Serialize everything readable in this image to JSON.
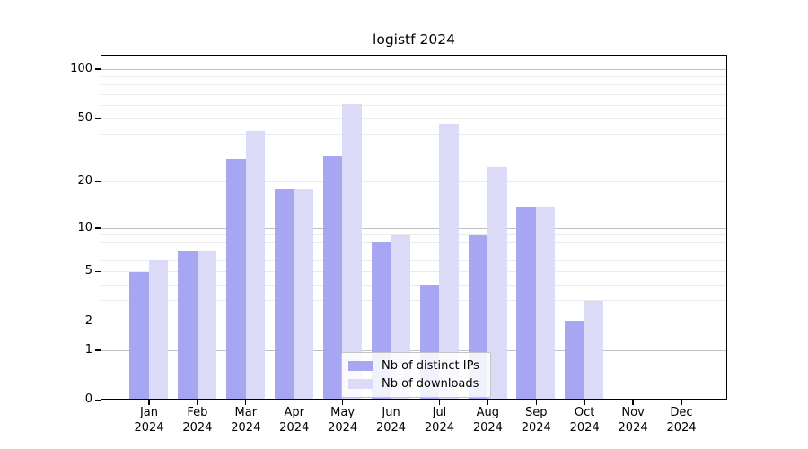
{
  "colors": {
    "bar_ips": "#a6a6f2",
    "bar_downloads": "#dbdbf8",
    "grid_major": "#c0c0c0",
    "grid_minor": "#eaeaea",
    "axis": "#000000",
    "legend_border": "#c4c4c4"
  },
  "chart_data": {
    "type": "bar",
    "title": "logistf 2024",
    "categories": [
      "Jan",
      "Feb",
      "Mar",
      "Apr",
      "May",
      "Jun",
      "Jul",
      "Aug",
      "Sep",
      "Oct",
      "Nov",
      "Dec"
    ],
    "year": "2024",
    "series": [
      {
        "name": "Nb of distinct IPs",
        "values": [
          5,
          7,
          28,
          18,
          29,
          8,
          4,
          9,
          14,
          2,
          0,
          0
        ]
      },
      {
        "name": "Nb of downloads",
        "values": [
          6,
          7,
          42,
          18,
          61,
          9,
          46,
          25,
          14,
          3,
          0,
          0
        ]
      }
    ],
    "y_scale": "log10(1+x)",
    "y_ticks": [
      0,
      1,
      2,
      5,
      10,
      20,
      50,
      100
    ],
    "grid_major_at": [
      1,
      10,
      100
    ],
    "grid_minor_at": [
      2,
      3,
      4,
      5,
      6,
      7,
      8,
      9,
      20,
      30,
      40,
      50,
      60,
      70,
      80,
      90
    ],
    "ylim": [
      0,
      121
    ],
    "grid": true,
    "legend_position": "lower center"
  }
}
